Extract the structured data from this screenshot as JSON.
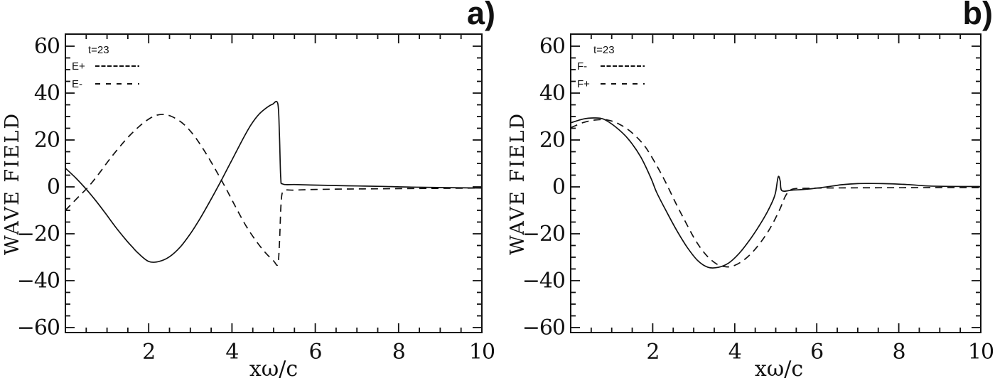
{
  "figure": {
    "background": "#ffffff",
    "line_color": "#111111"
  },
  "chart_data": [
    {
      "type": "line",
      "panel_label": "a)",
      "xlabel": "xω/c",
      "ylabel": "WAVE FIELD",
      "xlim": [
        0,
        10
      ],
      "ylim": [
        -60,
        60
      ],
      "xticks": [
        2,
        4,
        6,
        8,
        10
      ],
      "yticks": [
        -60,
        -40,
        -20,
        0,
        20,
        40,
        60
      ],
      "x_minor_step": 0.5,
      "y_minor_step": 5,
      "grid": false,
      "legend": {
        "title": "t=23",
        "position": "top-left",
        "entries": [
          {
            "label": "E+",
            "linestyle": "solid"
          },
          {
            "label": "E-",
            "linestyle": "dashed"
          }
        ]
      },
      "series": [
        {
          "name": "E+",
          "linestyle": "solid",
          "points": [
            [
              0,
              8
            ],
            [
              0.25,
              3.8
            ],
            [
              0.45,
              0
            ],
            [
              0.7,
              -5.2
            ],
            [
              0.95,
              -11
            ],
            [
              1.2,
              -17
            ],
            [
              1.45,
              -22.5
            ],
            [
              1.6,
              -25.5
            ],
            [
              1.75,
              -28.3
            ],
            [
              2.0,
              -31.8
            ],
            [
              2.25,
              -31.8
            ],
            [
              2.5,
              -29.8
            ],
            [
              2.75,
              -25.8
            ],
            [
              3.0,
              -20
            ],
            [
              3.25,
              -13
            ],
            [
              3.5,
              -5.2
            ],
            [
              3.75,
              3
            ],
            [
              4.0,
              11.5
            ],
            [
              4.25,
              20
            ],
            [
              4.45,
              26.3
            ],
            [
              4.65,
              31
            ],
            [
              4.85,
              34
            ],
            [
              4.97,
              35.2
            ],
            [
              5.1,
              35.5
            ],
            [
              5.14,
              22
            ],
            [
              5.17,
              4
            ],
            [
              5.22,
              1.2
            ],
            [
              5.5,
              1.0
            ],
            [
              5.9,
              0.8
            ],
            [
              6.4,
              0.6
            ],
            [
              7.0,
              0.4
            ],
            [
              7.6,
              0.2
            ],
            [
              8.3,
              -0.1
            ],
            [
              9.1,
              -0.3
            ],
            [
              10,
              -0.5
            ]
          ]
        },
        {
          "name": "E-",
          "linestyle": "dashed",
          "points": [
            [
              0,
              -10
            ],
            [
              0.3,
              -4.5
            ],
            [
              0.55,
              0
            ],
            [
              0.8,
              5.5
            ],
            [
              1.05,
              11.5
            ],
            [
              1.3,
              17
            ],
            [
              1.55,
              22
            ],
            [
              1.8,
              26.2
            ],
            [
              2.0,
              28.9
            ],
            [
              2.2,
              30.6
            ],
            [
              2.4,
              30.8
            ],
            [
              2.6,
              29.6
            ],
            [
              2.85,
              26.6
            ],
            [
              3.1,
              21.6
            ],
            [
              3.35,
              15
            ],
            [
              3.6,
              7.5
            ],
            [
              3.85,
              -0.5
            ],
            [
              4.1,
              -9
            ],
            [
              4.35,
              -17
            ],
            [
              4.6,
              -23.6
            ],
            [
              4.8,
              -28
            ],
            [
              5.0,
              -31.6
            ],
            [
              5.1,
              -33
            ],
            [
              5.14,
              -24
            ],
            [
              5.18,
              -7
            ],
            [
              5.24,
              -1.8
            ],
            [
              5.5,
              -1.4
            ],
            [
              6.0,
              -1.1
            ],
            [
              6.8,
              -0.9
            ],
            [
              7.6,
              -0.8
            ],
            [
              8.4,
              -0.7
            ],
            [
              9.2,
              -0.6
            ],
            [
              10,
              -0.5
            ]
          ]
        }
      ]
    },
    {
      "type": "line",
      "panel_label": "b)",
      "xlabel": "xω/c",
      "ylabel": "WAVE FIELD",
      "xlim": [
        0,
        10
      ],
      "ylim": [
        -60,
        60
      ],
      "xticks": [
        2,
        4,
        6,
        8,
        10
      ],
      "yticks": [
        -60,
        -40,
        -20,
        0,
        20,
        40,
        60
      ],
      "x_minor_step": 0.5,
      "y_minor_step": 5,
      "grid": false,
      "legend": {
        "title": "t=23",
        "position": "top-left",
        "entries": [
          {
            "label": "F-",
            "linestyle": "solid"
          },
          {
            "label": "F+",
            "linestyle": "dashed"
          }
        ]
      },
      "series": [
        {
          "name": "F-",
          "linestyle": "solid",
          "points": [
            [
              0,
              27.3
            ],
            [
              0.3,
              28.9
            ],
            [
              0.55,
              29.4
            ],
            [
              0.8,
              28.9
            ],
            [
              1.1,
              25.5
            ],
            [
              1.4,
              20.5
            ],
            [
              1.7,
              13
            ],
            [
              1.95,
              4
            ],
            [
              2.1,
              -2.5
            ],
            [
              2.35,
              -11
            ],
            [
              2.6,
              -19
            ],
            [
              2.85,
              -26
            ],
            [
              3.1,
              -31.5
            ],
            [
              3.35,
              -34.3
            ],
            [
              3.6,
              -34.3
            ],
            [
              3.85,
              -32.5
            ],
            [
              4.1,
              -28.5
            ],
            [
              4.35,
              -23
            ],
            [
              4.6,
              -16.5
            ],
            [
              4.8,
              -10.5
            ],
            [
              4.95,
              -5
            ],
            [
              5.0,
              -2
            ],
            [
              5.06,
              4.3
            ],
            [
              5.11,
              2.5
            ],
            [
              5.15,
              -1.6
            ],
            [
              5.4,
              -1.4
            ],
            [
              5.8,
              -0.9
            ],
            [
              6.2,
              -0.1
            ],
            [
              6.6,
              0.9
            ],
            [
              7.0,
              1.4
            ],
            [
              7.6,
              1.4
            ],
            [
              8.2,
              1.0
            ],
            [
              8.7,
              0.4
            ],
            [
              9.2,
              0.2
            ],
            [
              10,
              0.15
            ]
          ]
        },
        {
          "name": "F+",
          "linestyle": "dashed",
          "points": [
            [
              0,
              25.2
            ],
            [
              0.3,
              27.4
            ],
            [
              0.6,
              28.5
            ],
            [
              0.9,
              28.5
            ],
            [
              1.2,
              26.6
            ],
            [
              1.5,
              23
            ],
            [
              1.8,
              17.5
            ],
            [
              2.05,
              10.5
            ],
            [
              2.3,
              2.5
            ],
            [
              2.55,
              -6.5
            ],
            [
              2.8,
              -15
            ],
            [
              3.05,
              -23
            ],
            [
              3.3,
              -29
            ],
            [
              3.55,
              -32.8
            ],
            [
              3.75,
              -34
            ],
            [
              3.95,
              -33.8
            ],
            [
              4.2,
              -31.5
            ],
            [
              4.45,
              -27.5
            ],
            [
              4.7,
              -22
            ],
            [
              4.9,
              -16.5
            ],
            [
              5.1,
              -9.5
            ],
            [
              5.25,
              -3.5
            ],
            [
              5.4,
              -1
            ],
            [
              5.7,
              -0.6
            ],
            [
              6.1,
              -0.5
            ],
            [
              7,
              -0.4
            ],
            [
              8,
              -0.35
            ],
            [
              9,
              -0.3
            ],
            [
              10,
              -0.3
            ]
          ]
        }
      ]
    }
  ]
}
